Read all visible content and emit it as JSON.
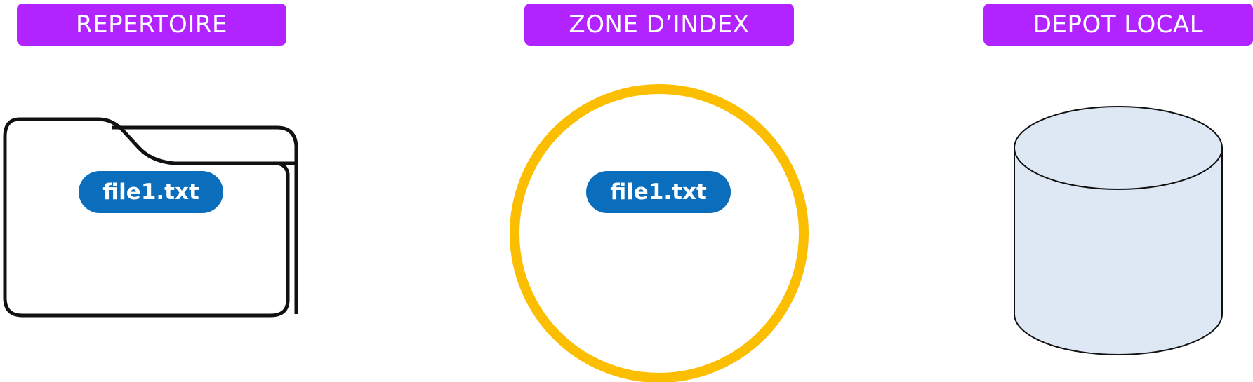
{
  "colors": {
    "label_bg": "#b224ff",
    "file_bg": "#0a6ebd",
    "index_ring": "#fcbe00",
    "db_fill": "#dde8f4",
    "outline": "#111111"
  },
  "sections": {
    "working_dir": {
      "label": "REPERTOIRE",
      "icon": "folder-icon",
      "file": "file1.txt"
    },
    "index": {
      "label": "ZONE D’INDEX",
      "icon": "circle-ring",
      "file": "file1.txt"
    },
    "local_repo": {
      "label": "DEPOT LOCAL",
      "icon": "database-icon"
    }
  }
}
